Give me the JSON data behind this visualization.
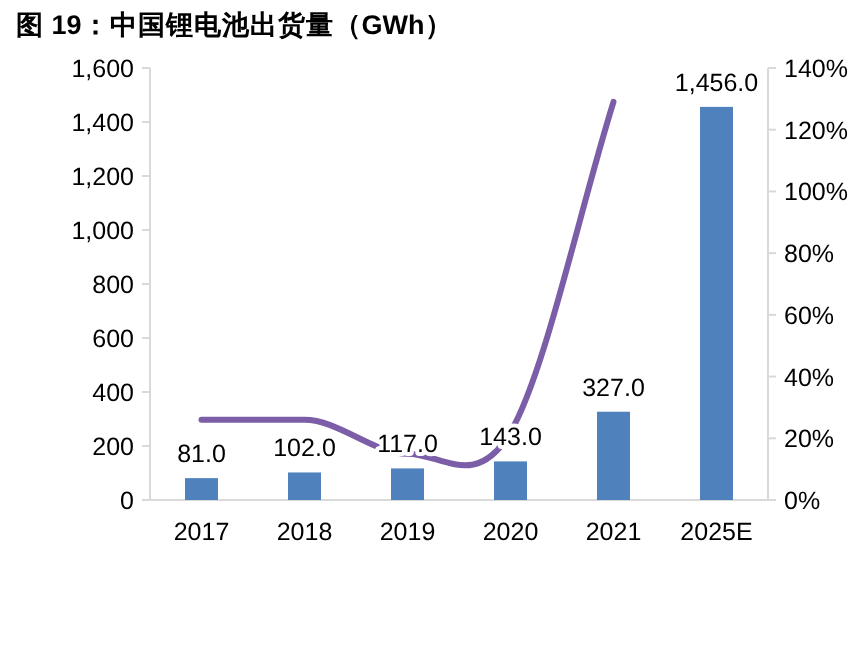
{
  "chart_data": {
    "type": "bar",
    "title": "图 19：中国锂电池出货量（GWh）",
    "categories": [
      "2017",
      "2018",
      "2019",
      "2020",
      "2021",
      "2025E"
    ],
    "series": [
      {
        "color": "#4f81bd",
        "values": [
          81.0,
          102.0,
          117.0,
          143.0,
          327.0,
          1456.0
        ],
        "value_labels": [
          "81.0",
          "102.0",
          "117.0",
          "143.0",
          "327.0",
          "1,456.0"
        ]
      },
      {
        "type": "line",
        "axis": "y2",
        "color": "#7b5ea7",
        "values": [
          26,
          26,
          15,
          22,
          129,
          null
        ],
        "marker": "none"
      }
    ],
    "ylim": [
      0,
      1600
    ],
    "yticks": [
      0,
      {
        "value": 200,
        "label": "200"
      },
      {
        "value": 400,
        "label": "400"
      },
      {
        "value": 600,
        "label": "600"
      },
      {
        "value": 800,
        "label": "800"
      },
      {
        "value": 1000,
        "label": "1,000"
      },
      {
        "value": 1200,
        "label": "1,200"
      },
      {
        "value": 1400,
        "label": "1,400"
      },
      {
        "value": 1600,
        "label": "1,600"
      }
    ],
    "y2lim": [
      0,
      140
    ],
    "y2ticks": [
      {
        "value": 0,
        "label": "0%"
      },
      {
        "value": 20,
        "label": "20%"
      },
      {
        "value": 40,
        "label": "40%"
      },
      {
        "value": 60,
        "label": "60%"
      },
      {
        "value": 80,
        "label": "80%"
      },
      {
        "value": 100,
        "label": "100%"
      },
      {
        "value": 120,
        "label": "120%"
      },
      {
        "value": 140,
        "label": "140%"
      }
    ]
  }
}
